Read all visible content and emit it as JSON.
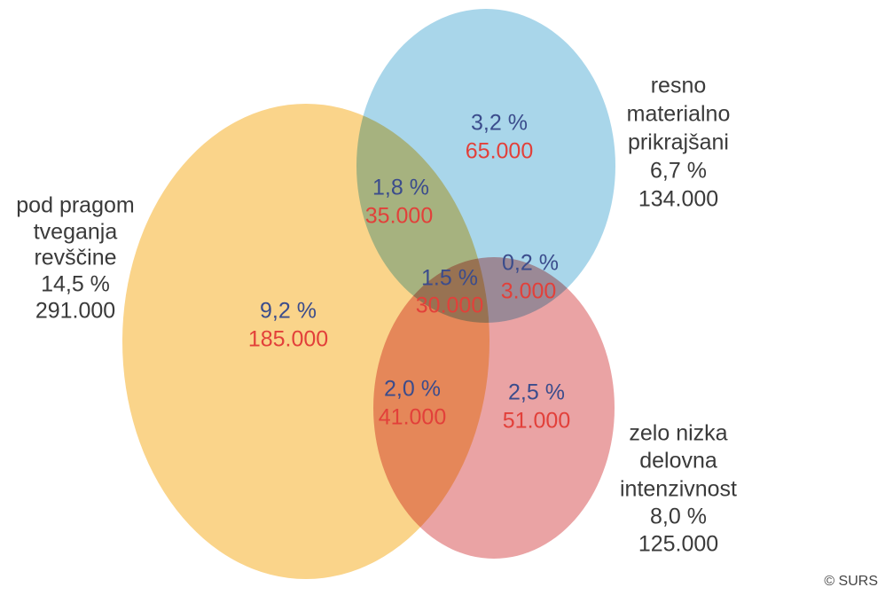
{
  "sets": [
    {
      "lines": [
        "pod pragom",
        "tveganja",
        "revščine"
      ],
      "percent": "14,5 %",
      "count": "291.000"
    },
    {
      "lines": [
        "resno",
        "materialno",
        "prikrajšani"
      ],
      "percent": "6,7 %",
      "count": "134.000"
    },
    {
      "lines": [
        "zelo nizka",
        "delovna",
        "intenzivnost"
      ],
      "percent": "8,0 %",
      "count": "125.000"
    }
  ],
  "regions": [
    {
      "percent": "9,2 %",
      "count": "185.000"
    },
    {
      "percent": "3,2 %",
      "count": "65.000"
    },
    {
      "percent": "1,8 %",
      "count": "35.000"
    },
    {
      "percent": "1.5 %",
      "count": "30.000"
    },
    {
      "percent": "0,2 %",
      "count": "3.000"
    },
    {
      "percent": "2,0 %",
      "count": "41.000"
    },
    {
      "percent": "2,5 %",
      "count": "51.000"
    }
  ],
  "credit": "© SURS"
}
